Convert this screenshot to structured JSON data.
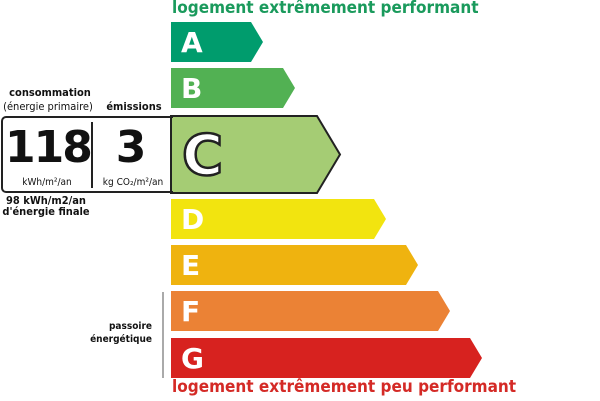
{
  "header": {
    "best_label": "logement extrêmement performant"
  },
  "footer": {
    "worst_label": "logement extrêmement peu performant"
  },
  "classes": [
    {
      "letter": "A",
      "color": "#009c6d"
    },
    {
      "letter": "B",
      "color": "#52b153"
    },
    {
      "letter": "C",
      "color": "#a5cc74"
    },
    {
      "letter": "D",
      "color": "#f2e40f"
    },
    {
      "letter": "E",
      "color": "#efb30f"
    },
    {
      "letter": "F",
      "color": "#eb8235"
    },
    {
      "letter": "G",
      "color": "#d7221f"
    }
  ],
  "current_class": "C",
  "consumption": {
    "title": "consommation",
    "subtitle": "(énergie primaire)",
    "value": "118",
    "unit": "kWh/m²/an",
    "final_energy_line1": "98 kWh/m2/an",
    "final_energy_line2": "d'énergie finale"
  },
  "emissions": {
    "title": "émissions",
    "value": "3",
    "unit": "kg CO₂/m²/an"
  },
  "passoire": {
    "line1": "passoire",
    "line2": "énergétique"
  }
}
